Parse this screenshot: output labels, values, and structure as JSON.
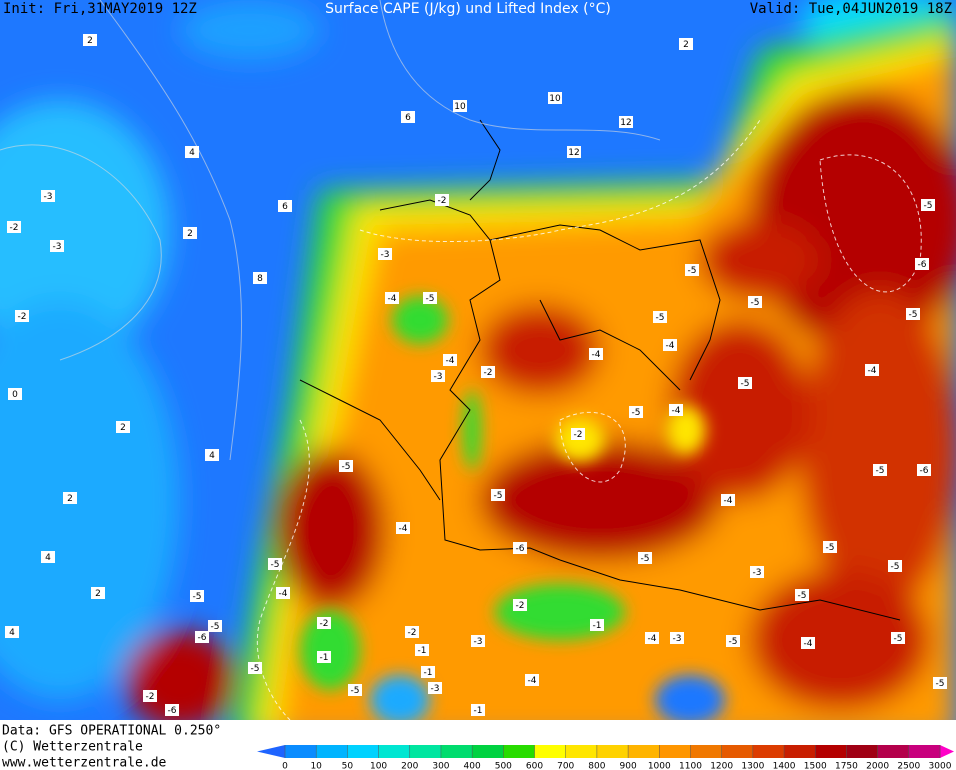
{
  "header": {
    "init": "Init: Fri,31MAY2019 12Z",
    "title": "Surface CAPE (J/kg) und Lifted Index (°C)",
    "valid": "Valid: Tue,04JUN2019 18Z"
  },
  "footer": {
    "data": "Data: GFS OPERATIONAL 0.250°",
    "copyright": "(C) Wetterzentrale",
    "url": "www.wetterzentrale.de"
  },
  "colorbar": {
    "ticks": [
      0,
      10,
      50,
      100,
      200,
      300,
      400,
      500,
      600,
      700,
      800,
      900,
      1000,
      1100,
      1200,
      1300,
      1400,
      1500,
      1750,
      2000,
      2500,
      3000
    ],
    "colors": [
      "#0a8cff",
      "#00b4ff",
      "#00d2ff",
      "#00e6d2",
      "#00e6a0",
      "#00dc6e",
      "#00d241",
      "#28dc00",
      "#ffff00",
      "#ffe600",
      "#ffd200",
      "#ffb400",
      "#ff9600",
      "#f07800",
      "#e65a00",
      "#dc3c00",
      "#c81e00",
      "#b40000",
      "#a00014",
      "#b4004b",
      "#c8007d"
    ],
    "under_color": "#1e64ff",
    "over_color": "#ff00c8"
  },
  "contour_labels": [
    "2",
    "4",
    "6",
    "10",
    "10",
    "12",
    "12",
    "2",
    "-3",
    "-3",
    "-2",
    "6",
    "8",
    "2",
    "-2",
    "0",
    "2",
    "4",
    "2",
    "4",
    "2",
    "4",
    "-2",
    "-3",
    "-4",
    "-5",
    "-4",
    "-3",
    "-2",
    "-4",
    "-5",
    "-4",
    "-5",
    "-5",
    "-6",
    "-5",
    "-5",
    "-4",
    "-5",
    "-2",
    "-4",
    "-5",
    "-5",
    "-4",
    "-5",
    "-6",
    "-5",
    "-4",
    "-5",
    "-6",
    "-5",
    "-3",
    "-5",
    "-4",
    "-5",
    "-5",
    "-5",
    "-5",
    "-3",
    "-4",
    "-1",
    "-2",
    "-3",
    "-1",
    "-2",
    "-1",
    "-5",
    "-5",
    "-4",
    "-5",
    "-5",
    "-6",
    "-5",
    "-2",
    "-6",
    "-4",
    "-1",
    "-3",
    "-2",
    "-1"
  ]
}
